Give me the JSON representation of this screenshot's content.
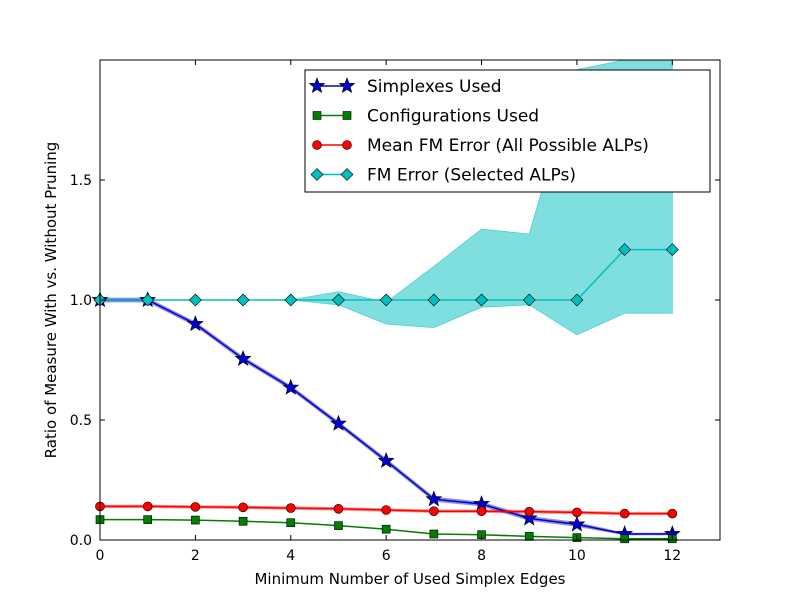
{
  "chart_data": {
    "type": "line",
    "xlabel": "Minimum Number of Used Simplex Edges",
    "ylabel": "Ratio of Measure With vs. Without Pruning",
    "xlim": [
      0,
      13
    ],
    "ylim": [
      0,
      2.0
    ],
    "xticks": [
      "0",
      "2",
      "4",
      "6",
      "8",
      "10",
      "12"
    ],
    "yticks": [
      "0.0",
      "0.5",
      "1.0",
      "1.5"
    ],
    "legend_position": "upper-right",
    "x": [
      0,
      1,
      2,
      3,
      4,
      5,
      6,
      7,
      8,
      9,
      10,
      11,
      12
    ],
    "series": [
      {
        "name": "Simplexes Used",
        "color": "#0000cc",
        "marker": "star",
        "values": [
          1.0,
          1.0,
          0.9,
          0.755,
          0.635,
          0.485,
          0.33,
          0.17,
          0.15,
          0.09,
          0.065,
          0.025,
          0.025
        ],
        "band_lower": [
          0.99,
          0.99,
          0.89,
          0.745,
          0.625,
          0.475,
          0.32,
          0.16,
          0.14,
          0.08,
          0.055,
          0.02,
          0.02
        ],
        "band_upper": [
          1.01,
          1.01,
          0.91,
          0.765,
          0.645,
          0.495,
          0.34,
          0.18,
          0.16,
          0.1,
          0.075,
          0.03,
          0.03
        ]
      },
      {
        "name": "Configurations Used",
        "color": "#007f00",
        "marker": "square",
        "values": [
          0.085,
          0.085,
          0.083,
          0.078,
          0.072,
          0.06,
          0.045,
          0.025,
          0.022,
          0.015,
          0.01,
          0.005,
          0.005
        ]
      },
      {
        "name": "Mean FM Error (All Possible ALPs)",
        "color": "#ff0000",
        "marker": "circle",
        "values": [
          0.14,
          0.14,
          0.138,
          0.136,
          0.133,
          0.13,
          0.125,
          0.12,
          0.12,
          0.118,
          0.115,
          0.11,
          0.11
        ],
        "band_lower": [
          0.133,
          0.133,
          0.131,
          0.129,
          0.126,
          0.123,
          0.118,
          0.113,
          0.113,
          0.111,
          0.108,
          0.103,
          0.103
        ],
        "band_upper": [
          0.147,
          0.147,
          0.145,
          0.143,
          0.14,
          0.137,
          0.132,
          0.127,
          0.127,
          0.125,
          0.122,
          0.117,
          0.117
        ]
      },
      {
        "name": "FM Error (Selected ALPs)",
        "color": "#00bfbf",
        "marker": "diamond",
        "band_color": "#7fdfdf",
        "values": [
          1.0,
          1.0,
          1.0,
          1.0,
          1.0,
          1.0,
          1.0,
          1.0,
          1.0,
          1.0,
          1.0,
          1.21,
          1.21
        ],
        "band_lower": [
          1.0,
          1.0,
          1.0,
          1.0,
          1.0,
          0.98,
          0.9,
          0.885,
          0.97,
          0.98,
          0.855,
          0.945,
          0.945
        ],
        "band_upper": [
          1.0,
          1.0,
          1.0,
          1.0,
          1.0,
          1.035,
          0.99,
          1.14,
          1.295,
          1.275,
          1.96,
          2.0,
          2.0
        ]
      }
    ]
  }
}
